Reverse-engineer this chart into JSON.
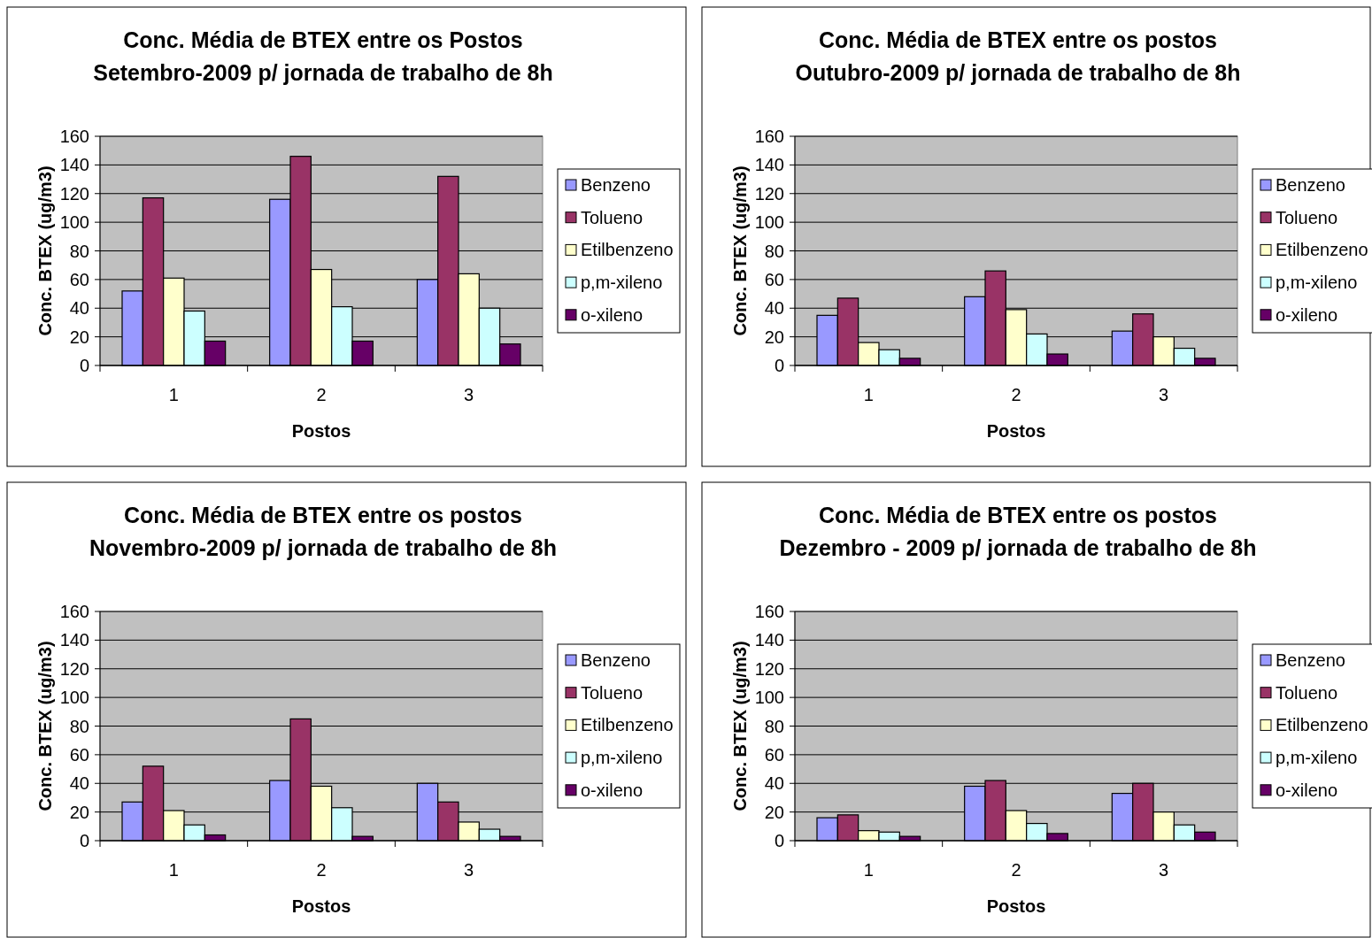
{
  "chart_data": [
    {
      "type": "bar",
      "title": "Conc. Média de BTEX entre os Postos\nSetembro-2009 p/ jornada de trabalho de 8h",
      "xlabel": "Postos",
      "ylabel": "Conc. BTEX (ug/m3)",
      "categories": [
        "1",
        "2",
        "3"
      ],
      "ylim": [
        0,
        160
      ],
      "yticks": [
        0,
        20,
        40,
        60,
        80,
        100,
        120,
        140,
        160
      ],
      "grid": "y",
      "legend": "right",
      "series": [
        {
          "name": "Benzeno",
          "color": "#9999ff",
          "values": [
            52,
            116,
            60
          ]
        },
        {
          "name": "Tolueno",
          "color": "#993366",
          "values": [
            117,
            146,
            132
          ]
        },
        {
          "name": "Etilbenzeno",
          "color": "#ffffcc",
          "values": [
            61,
            67,
            64
          ]
        },
        {
          "name": "p,m-xileno",
          "color": "#ccffff",
          "values": [
            38,
            41,
            40
          ]
        },
        {
          "name": "o-xileno",
          "color": "#660066",
          "values": [
            17,
            17,
            15
          ]
        }
      ]
    },
    {
      "type": "bar",
      "title": "Conc. Média de BTEX entre os postos\nOutubro-2009 p/ jornada de trabalho de 8h",
      "xlabel": "Postos",
      "ylabel": "Conc. BTEX (ug/m3)",
      "categories": [
        "1",
        "2",
        "3"
      ],
      "ylim": [
        0,
        160
      ],
      "yticks": [
        0,
        20,
        40,
        60,
        80,
        100,
        120,
        140,
        160
      ],
      "grid": "y",
      "legend": "right",
      "series": [
        {
          "name": "Benzeno",
          "color": "#9999ff",
          "values": [
            35,
            48,
            24
          ]
        },
        {
          "name": "Tolueno",
          "color": "#993366",
          "values": [
            47,
            66,
            36
          ]
        },
        {
          "name": "Etilbenzeno",
          "color": "#ffffcc",
          "values": [
            16,
            39,
            20
          ]
        },
        {
          "name": "p,m-xileno",
          "color": "#ccffff",
          "values": [
            11,
            22,
            12
          ]
        },
        {
          "name": "o-xileno",
          "color": "#660066",
          "values": [
            5,
            8,
            5
          ]
        }
      ]
    },
    {
      "type": "bar",
      "title": "Conc. Média de BTEX entre os postos\nNovembro-2009 p/ jornada de trabalho de 8h",
      "xlabel": "Postos",
      "ylabel": "Conc. BTEX (ug/m3)",
      "categories": [
        "1",
        "2",
        "3"
      ],
      "ylim": [
        0,
        160
      ],
      "yticks": [
        0,
        20,
        40,
        60,
        80,
        100,
        120,
        140,
        160
      ],
      "grid": "y",
      "legend": "right",
      "series": [
        {
          "name": "Benzeno",
          "color": "#9999ff",
          "values": [
            27,
            42,
            40
          ]
        },
        {
          "name": "Tolueno",
          "color": "#993366",
          "values": [
            52,
            85,
            27
          ]
        },
        {
          "name": "Etilbenzeno",
          "color": "#ffffcc",
          "values": [
            21,
            38,
            13
          ]
        },
        {
          "name": "p,m-xileno",
          "color": "#ccffff",
          "values": [
            11,
            23,
            8
          ]
        },
        {
          "name": "o-xileno",
          "color": "#660066",
          "values": [
            4,
            3,
            3
          ]
        }
      ]
    },
    {
      "type": "bar",
      "title": "Conc. Média de BTEX entre os postos\nDezembro - 2009 p/ jornada de trabalho de 8h",
      "xlabel": "Postos",
      "ylabel": "Conc. BTEX (ug/m3)",
      "categories": [
        "1",
        "2",
        "3"
      ],
      "ylim": [
        0,
        160
      ],
      "yticks": [
        0,
        20,
        40,
        60,
        80,
        100,
        120,
        140,
        160
      ],
      "grid": "y",
      "legend": "right",
      "series": [
        {
          "name": "Benzeno",
          "color": "#9999ff",
          "values": [
            16,
            38,
            33
          ]
        },
        {
          "name": "Tolueno",
          "color": "#993366",
          "values": [
            18,
            42,
            40
          ]
        },
        {
          "name": "Etilbenzeno",
          "color": "#ffffcc",
          "values": [
            7,
            21,
            20
          ]
        },
        {
          "name": "p,m-xileno",
          "color": "#ccffff",
          "values": [
            6,
            12,
            11
          ]
        },
        {
          "name": "o-xileno",
          "color": "#660066",
          "values": [
            3,
            5,
            6
          ]
        }
      ]
    }
  ]
}
